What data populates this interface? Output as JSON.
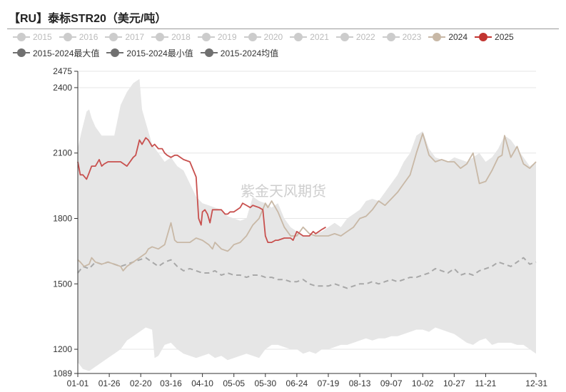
{
  "title": "【RU】泰标STR20（美元/吨）",
  "watermark": "紫金天风期货",
  "legend_row1": [
    {
      "label": "2015",
      "color": "#cccccc",
      "text_color": "#bbbbbb",
      "inactive": true
    },
    {
      "label": "2016",
      "color": "#cccccc",
      "text_color": "#bbbbbb",
      "inactive": true
    },
    {
      "label": "2017",
      "color": "#cccccc",
      "text_color": "#bbbbbb",
      "inactive": true
    },
    {
      "label": "2018",
      "color": "#cccccc",
      "text_color": "#bbbbbb",
      "inactive": true
    },
    {
      "label": "2019",
      "color": "#cccccc",
      "text_color": "#bbbbbb",
      "inactive": true
    },
    {
      "label": "2020",
      "color": "#cccccc",
      "text_color": "#bbbbbb",
      "inactive": true
    },
    {
      "label": "2021",
      "color": "#cccccc",
      "text_color": "#bbbbbb",
      "inactive": true
    },
    {
      "label": "2022",
      "color": "#cccccc",
      "text_color": "#bbbbbb",
      "inactive": true
    },
    {
      "label": "2023",
      "color": "#cccccc",
      "text_color": "#bbbbbb",
      "inactive": true
    },
    {
      "label": "2024",
      "color": "#c8b8a6",
      "text_color": "#333333",
      "inactive": false
    },
    {
      "label": "2025",
      "color": "#c23531",
      "text_color": "#333333",
      "inactive": false
    }
  ],
  "legend_row2": [
    {
      "label": "2015-2024最大值",
      "color": "#707070",
      "text_color": "#333333",
      "inactive": false
    },
    {
      "label": "2015-2024最小值",
      "color": "#707070",
      "text_color": "#333333",
      "inactive": false
    },
    {
      "label": "2015-2024均值",
      "color": "#707070",
      "text_color": "#333333",
      "inactive": false
    }
  ],
  "chart_data": {
    "type": "line",
    "title": "【RU】泰标STR20（美元/吨）",
    "xlabel": "",
    "ylabel": "",
    "ylim": [
      1089,
      2475
    ],
    "y_ticks": [
      1089,
      1200,
      1500,
      1800,
      2100,
      2400,
      2475
    ],
    "x_ticks": [
      "01-01",
      "01-26",
      "02-20",
      "03-16",
      "04-10",
      "05-05",
      "05-30",
      "06-24",
      "07-19",
      "08-13",
      "09-07",
      "10-02",
      "10-27",
      "11-21",
      "12-31"
    ],
    "x_tick_days": [
      1,
      26,
      51,
      75,
      100,
      125,
      150,
      175,
      200,
      225,
      250,
      275,
      300,
      325,
      365
    ],
    "x_range_days": [
      1,
      365
    ],
    "grid": true,
    "colors": {
      "band": "#e6e6e6",
      "y2024": "#c8b8a6",
      "y2025": "#c8504e",
      "avg": "#a8a8a8"
    },
    "band_max": {
      "x": [
        1,
        4,
        8,
        10,
        12,
        15,
        20,
        26,
        30,
        35,
        40,
        45,
        50,
        52,
        55,
        60,
        65,
        70,
        75,
        80,
        85,
        90,
        95,
        100,
        105,
        110,
        115,
        120,
        125,
        130,
        135,
        140,
        145,
        150,
        155,
        160,
        165,
        170,
        175,
        180,
        185,
        190,
        195,
        200,
        205,
        210,
        215,
        220,
        225,
        230,
        235,
        240,
        245,
        250,
        255,
        260,
        265,
        270,
        275,
        280,
        285,
        290,
        295,
        300,
        305,
        310,
        315,
        320,
        325,
        330,
        335,
        340,
        345,
        350,
        355,
        360,
        365
      ],
      "y": [
        2120,
        2200,
        2290,
        2300,
        2260,
        2220,
        2180,
        2180,
        2180,
        2320,
        2380,
        2420,
        2440,
        2300,
        2240,
        2140,
        2100,
        2060,
        2080,
        2040,
        2020,
        1960,
        1900,
        1870,
        1860,
        1850,
        1840,
        1810,
        1800,
        1790,
        1800,
        1900,
        1880,
        1870,
        1850,
        1870,
        1800,
        1760,
        1740,
        1720,
        1720,
        1730,
        1740,
        1760,
        1780,
        1760,
        1800,
        1820,
        1840,
        1880,
        1890,
        1880,
        1920,
        1960,
        2000,
        2060,
        2100,
        2180,
        2200,
        2120,
        2080,
        2070,
        2060,
        2080,
        2070,
        2060,
        2080,
        2100,
        2060,
        2080,
        2120,
        2180,
        2160,
        2120,
        2080,
        2040,
        2060
      ]
    },
    "band_min": {
      "x": [
        1,
        5,
        10,
        15,
        20,
        25,
        30,
        35,
        40,
        45,
        50,
        55,
        60,
        62,
        65,
        70,
        75,
        80,
        85,
        90,
        95,
        100,
        105,
        110,
        115,
        120,
        125,
        130,
        135,
        140,
        145,
        150,
        155,
        160,
        165,
        170,
        175,
        180,
        185,
        190,
        195,
        200,
        205,
        210,
        215,
        220,
        225,
        230,
        235,
        240,
        245,
        250,
        255,
        260,
        265,
        270,
        275,
        280,
        285,
        290,
        295,
        300,
        305,
        310,
        315,
        320,
        325,
        330,
        335,
        340,
        345,
        350,
        355,
        360,
        365
      ],
      "y": [
        1140,
        1110,
        1100,
        1120,
        1140,
        1160,
        1180,
        1200,
        1240,
        1260,
        1280,
        1300,
        1290,
        1160,
        1170,
        1220,
        1230,
        1200,
        1180,
        1170,
        1160,
        1170,
        1180,
        1160,
        1170,
        1150,
        1160,
        1170,
        1180,
        1170,
        1160,
        1200,
        1220,
        1220,
        1210,
        1200,
        1200,
        1180,
        1190,
        1180,
        1200,
        1200,
        1210,
        1220,
        1220,
        1230,
        1240,
        1250,
        1240,
        1250,
        1250,
        1260,
        1260,
        1270,
        1280,
        1290,
        1290,
        1280,
        1300,
        1290,
        1280,
        1270,
        1250,
        1230,
        1220,
        1240,
        1250,
        1220,
        1230,
        1230,
        1230,
        1220,
        1220,
        1200,
        1180
      ]
    },
    "series": [
      {
        "name": "2015-2024均值",
        "style": "dashed",
        "x": [
          1,
          5,
          10,
          15,
          20,
          25,
          30,
          35,
          40,
          45,
          50,
          55,
          60,
          65,
          70,
          75,
          80,
          85,
          90,
          95,
          100,
          105,
          110,
          115,
          120,
          125,
          130,
          135,
          140,
          145,
          150,
          155,
          160,
          165,
          170,
          175,
          180,
          185,
          190,
          195,
          200,
          205,
          210,
          215,
          220,
          225,
          230,
          235,
          240,
          245,
          250,
          255,
          260,
          265,
          270,
          275,
          280,
          285,
          290,
          295,
          300,
          305,
          310,
          315,
          320,
          325,
          330,
          335,
          340,
          345,
          350,
          355,
          360,
          365
        ],
        "y": [
          1550,
          1580,
          1570,
          1600,
          1590,
          1600,
          1590,
          1580,
          1590,
          1600,
          1610,
          1620,
          1600,
          1580,
          1600,
          1610,
          1580,
          1560,
          1570,
          1560,
          1550,
          1550,
          1560,
          1540,
          1550,
          1540,
          1540,
          1530,
          1540,
          1540,
          1530,
          1530,
          1520,
          1520,
          1510,
          1510,
          1520,
          1500,
          1490,
          1490,
          1490,
          1500,
          1490,
          1480,
          1490,
          1500,
          1500,
          1510,
          1500,
          1510,
          1520,
          1510,
          1520,
          1530,
          1530,
          1540,
          1550,
          1570,
          1560,
          1550,
          1570,
          1540,
          1550,
          1540,
          1560,
          1570,
          1580,
          1600,
          1590,
          1580,
          1600,
          1620,
          1590,
          1600
        ]
      },
      {
        "name": "2024",
        "style": "solid",
        "x": [
          1,
          3,
          6,
          10,
          12,
          15,
          20,
          25,
          30,
          35,
          37,
          40,
          45,
          50,
          55,
          57,
          60,
          65,
          70,
          73,
          75,
          78,
          80,
          85,
          90,
          95,
          100,
          105,
          108,
          110,
          115,
          120,
          122,
          125,
          130,
          135,
          140,
          145,
          150,
          152,
          155,
          160,
          165,
          170,
          175,
          180,
          185,
          190,
          195,
          200,
          205,
          210,
          215,
          220,
          225,
          230,
          235,
          240,
          245,
          250,
          255,
          260,
          265,
          268,
          270,
          275,
          280,
          285,
          290,
          295,
          300,
          305,
          310,
          315,
          320,
          325,
          330,
          335,
          338,
          340,
          345,
          350,
          355,
          360,
          365
        ],
        "y": [
          1610,
          1600,
          1580,
          1590,
          1620,
          1600,
          1590,
          1600,
          1590,
          1580,
          1560,
          1580,
          1600,
          1620,
          1640,
          1660,
          1670,
          1660,
          1680,
          1740,
          1780,
          1700,
          1690,
          1690,
          1690,
          1710,
          1700,
          1680,
          1660,
          1690,
          1660,
          1650,
          1660,
          1680,
          1690,
          1720,
          1770,
          1800,
          1870,
          1850,
          1880,
          1830,
          1760,
          1720,
          1720,
          1760,
          1730,
          1720,
          1720,
          1720,
          1730,
          1720,
          1740,
          1760,
          1800,
          1810,
          1840,
          1880,
          1860,
          1890,
          1920,
          1960,
          2000,
          2060,
          2100,
          2190,
          2090,
          2060,
          2070,
          2060,
          2060,
          2030,
          2050,
          2100,
          1960,
          1970,
          2020,
          2080,
          2090,
          2180,
          2080,
          2130,
          2050,
          2030,
          2060
        ]
      },
      {
        "name": "2025",
        "style": "solid",
        "x": [
          1,
          3,
          5,
          8,
          10,
          12,
          15,
          18,
          20,
          22,
          25,
          30,
          35,
          40,
          45,
          47,
          50,
          52,
          55,
          57,
          60,
          62,
          65,
          68,
          70,
          72,
          75,
          78,
          80,
          85,
          90,
          95,
          97,
          99,
          100,
          102,
          104,
          106,
          108,
          110,
          115,
          118,
          120,
          122,
          125,
          130,
          132,
          135,
          138,
          140,
          145,
          148,
          150,
          152,
          155,
          158,
          160,
          165,
          170,
          172,
          175,
          180,
          185,
          188,
          190,
          195,
          198
        ],
        "y": [
          2060,
          2000,
          2000,
          1980,
          2010,
          2040,
          2040,
          2070,
          2040,
          2050,
          2060,
          2060,
          2060,
          2040,
          2080,
          2090,
          2160,
          2140,
          2170,
          2160,
          2130,
          2140,
          2120,
          2120,
          2100,
          2090,
          2080,
          2090,
          2090,
          2070,
          2060,
          1990,
          1800,
          1770,
          1830,
          1840,
          1820,
          1780,
          1840,
          1840,
          1840,
          1820,
          1820,
          1830,
          1830,
          1850,
          1870,
          1860,
          1850,
          1860,
          1850,
          1840,
          1720,
          1690,
          1690,
          1700,
          1700,
          1710,
          1710,
          1700,
          1740,
          1720,
          1720,
          1740,
          1730,
          1750,
          1760
        ]
      }
    ]
  }
}
